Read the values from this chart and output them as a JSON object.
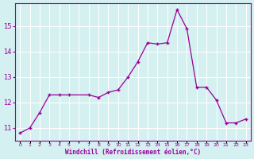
{
  "x": [
    0,
    1,
    2,
    3,
    4,
    5,
    7,
    8,
    9,
    10,
    11,
    12,
    13,
    14,
    15,
    16,
    17,
    18,
    19,
    20,
    21,
    22,
    23
  ],
  "y": [
    10.8,
    11.0,
    11.6,
    12.3,
    12.3,
    12.3,
    12.3,
    12.2,
    12.4,
    12.5,
    13.0,
    13.6,
    14.35,
    14.3,
    14.35,
    15.65,
    14.9,
    12.6,
    12.6,
    12.1,
    11.2,
    11.2,
    11.35
  ],
  "ylim": [
    10.5,
    15.9
  ],
  "xlim": [
    -0.5,
    23.5
  ],
  "yticks": [
    11,
    12,
    13,
    14,
    15
  ],
  "all_xticks": [
    0,
    1,
    2,
    3,
    4,
    5,
    6,
    7,
    8,
    9,
    10,
    11,
    12,
    13,
    14,
    15,
    16,
    17,
    18,
    19,
    20,
    21,
    22,
    23
  ],
  "all_xlabels": [
    "0",
    "1",
    "2",
    "3",
    "4",
    "5",
    "",
    "7",
    "8",
    "9",
    "10",
    "11",
    "12",
    "13",
    "14",
    "15",
    "16",
    "17",
    "18",
    "19",
    "20",
    "21",
    "22",
    "23"
  ],
  "xlabel": "Windchill (Refroidissement éolien,°C)",
  "line_color": "#990099",
  "marker_color": "#990099",
  "bg_color": "#d4f0f0",
  "grid_color": "#ffffff",
  "xlabel_color": "#990099",
  "tick_color": "#990099"
}
